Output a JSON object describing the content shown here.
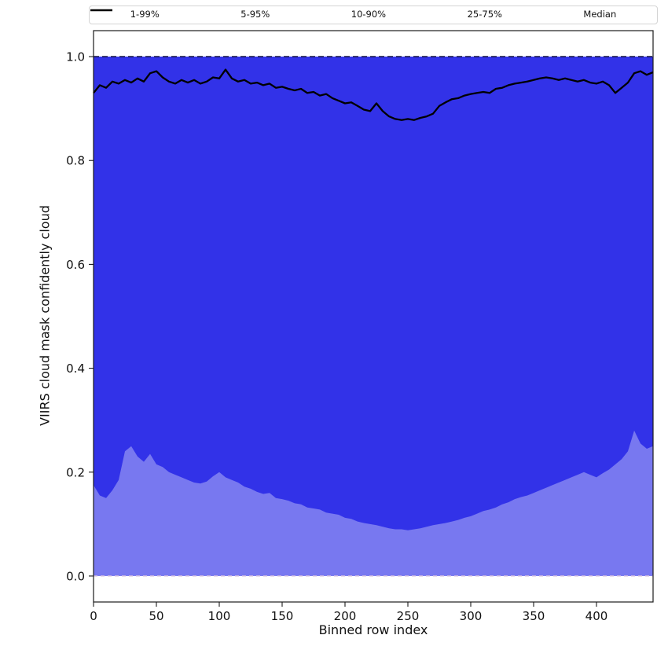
{
  "chart_data": {
    "type": "area",
    "title": "",
    "xlabel": "Binned row index",
    "ylabel": "VIIRS cloud mask confidently cloud",
    "xlim": [
      0,
      445
    ],
    "ylim": [
      -0.05,
      1.05
    ],
    "grid": false,
    "legend_position": "top",
    "xticks": {
      "values": [
        0,
        50,
        100,
        150,
        200,
        250,
        300,
        350,
        400
      ],
      "labels": [
        "0",
        "50",
        "100",
        "150",
        "200",
        "250",
        "300",
        "350",
        "400"
      ]
    },
    "yticks": {
      "values": [
        0.0,
        0.2,
        0.4,
        0.6,
        0.8,
        1.0
      ],
      "labels": [
        "0.0",
        "0.2",
        "0.4",
        "0.6",
        "0.8",
        "1.0"
      ]
    },
    "x_start": 0,
    "x_step": 5,
    "bands": {
      "p99_upper": 1.0,
      "p95_upper": 1.0,
      "p90_upper": 1.0,
      "p75_upper": 1.0,
      "p1_lower": 0.0,
      "p5_lower": 0.0,
      "p10_lower": 0.0,
      "p25_lower": [
        0.175,
        0.155,
        0.15,
        0.165,
        0.185,
        0.24,
        0.25,
        0.23,
        0.22,
        0.235,
        0.215,
        0.21,
        0.2,
        0.195,
        0.19,
        0.185,
        0.18,
        0.178,
        0.182,
        0.192,
        0.2,
        0.19,
        0.185,
        0.18,
        0.172,
        0.168,
        0.162,
        0.158,
        0.16,
        0.15,
        0.148,
        0.145,
        0.14,
        0.138,
        0.132,
        0.13,
        0.128,
        0.122,
        0.12,
        0.118,
        0.112,
        0.11,
        0.105,
        0.102,
        0.1,
        0.098,
        0.095,
        0.092,
        0.09,
        0.09,
        0.088,
        0.09,
        0.092,
        0.095,
        0.098,
        0.1,
        0.102,
        0.105,
        0.108,
        0.112,
        0.115,
        0.12,
        0.125,
        0.128,
        0.132,
        0.138,
        0.142,
        0.148,
        0.152,
        0.155,
        0.16,
        0.165,
        0.17,
        0.175,
        0.18,
        0.185,
        0.19,
        0.195,
        0.2,
        0.195,
        0.19,
        0.198,
        0.205,
        0.215,
        0.225,
        0.24,
        0.28,
        0.255,
        0.245,
        0.25
      ]
    },
    "series": [
      {
        "name": "Median",
        "values": [
          0.93,
          0.945,
          0.94,
          0.952,
          0.948,
          0.955,
          0.95,
          0.958,
          0.952,
          0.968,
          0.972,
          0.96,
          0.952,
          0.948,
          0.955,
          0.95,
          0.955,
          0.948,
          0.952,
          0.96,
          0.958,
          0.975,
          0.958,
          0.952,
          0.955,
          0.948,
          0.95,
          0.945,
          0.948,
          0.94,
          0.942,
          0.938,
          0.935,
          0.938,
          0.93,
          0.932,
          0.925,
          0.928,
          0.92,
          0.915,
          0.91,
          0.912,
          0.905,
          0.898,
          0.895,
          0.91,
          0.895,
          0.885,
          0.88,
          0.878,
          0.88,
          0.878,
          0.882,
          0.885,
          0.89,
          0.905,
          0.912,
          0.918,
          0.92,
          0.925,
          0.928,
          0.93,
          0.932,
          0.93,
          0.938,
          0.94,
          0.945,
          0.948,
          0.95,
          0.952,
          0.955,
          0.958,
          0.96,
          0.958,
          0.955,
          0.958,
          0.955,
          0.952,
          0.955,
          0.95,
          0.948,
          0.952,
          0.945,
          0.93,
          0.94,
          0.95,
          0.968,
          0.972,
          0.965,
          0.97
        ]
      }
    ],
    "legend": [
      {
        "label": "1-99%",
        "color": "#ecdcec",
        "dash": "2 2",
        "width": 1.2
      },
      {
        "label": "5-95%",
        "color": "#d8c0e4",
        "dash": "4 2",
        "width": 1.2
      },
      {
        "label": "10-90%",
        "color": "#7d7df2",
        "dash": "5 3",
        "width": 1.3
      },
      {
        "label": "25-75%",
        "color": "#4040d8",
        "dash": "6 2 2 2",
        "width": 1.6
      },
      {
        "label": "Median",
        "color": "#000000",
        "dash": "",
        "width": 2.5
      }
    ],
    "colors": {
      "band_fill_outer": "#7878f0",
      "band_fill_inner": "#3232e8",
      "top_edge_line": "#15154d",
      "bottom_edge_line": "#d9c4e0",
      "median_line": "#000000",
      "axis": "#1a1a1a",
      "tick_text": "#111111"
    }
  }
}
